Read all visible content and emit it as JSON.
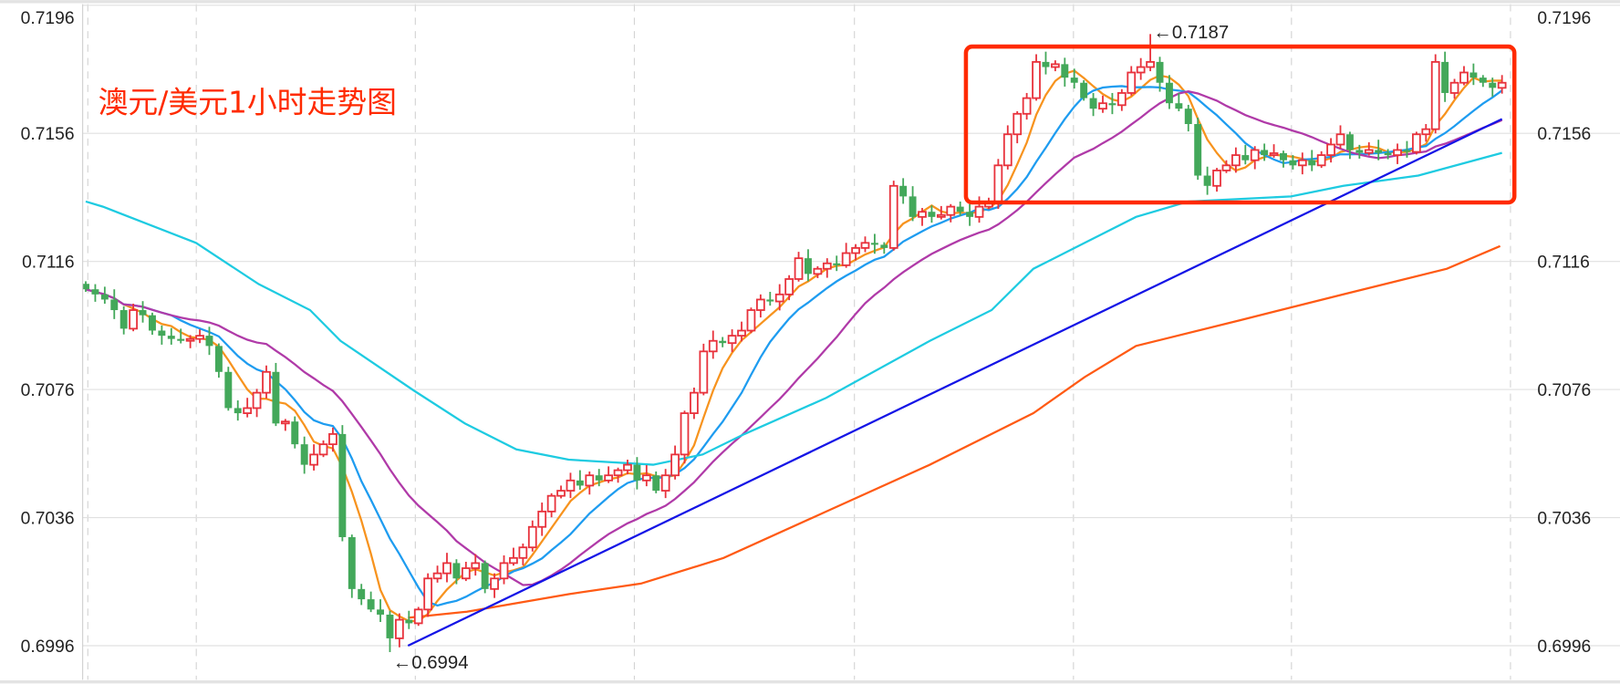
{
  "chart_data": {
    "type": "candlestick",
    "title": "澳元/美元1小时走势图",
    "xlabel": "",
    "ylabel": "",
    "ylim": [
      0.6984,
      0.72
    ],
    "y_ticks": [
      "0.7196",
      "0.7156",
      "0.7116",
      "0.7076",
      "0.7036",
      "0.6996"
    ],
    "grid": true,
    "up_color": "#e8323c",
    "down_color": "#43a85a",
    "first_open": 0.7109,
    "closes": [
      0.71073,
      0.71057,
      0.71041,
      0.71008,
      0.7095,
      0.71008,
      0.70992,
      0.70944,
      0.70928,
      0.70918,
      0.70912,
      0.70918,
      0.70928,
      0.70896,
      0.70815,
      0.70702,
      0.70686,
      0.70702,
      0.7075,
      0.70815,
      0.70654,
      0.7066,
      0.70589,
      0.70525,
      0.70557,
      0.70589,
      0.70621,
      0.70299,
      0.70137,
      0.70105,
      0.70073,
      0.70057,
      0.69983,
      0.70041,
      0.7003,
      0.70073,
      0.7017,
      0.70186,
      0.70218,
      0.7017,
      0.70202,
      0.70218,
      0.70137,
      0.7017,
      0.70218,
      0.70234,
      0.70267,
      0.70331,
      0.70379,
      0.70428,
      0.70444,
      0.70476,
      0.7046,
      0.70492,
      0.70476,
      0.70492,
      0.70508,
      0.70525,
      0.70476,
      0.70492,
      0.70444,
      0.70492,
      0.70557,
      0.70686,
      0.7075,
      0.70879,
      0.70912,
      0.70905,
      0.70928,
      0.70944,
      0.71008,
      0.71041,
      0.71035,
      0.71057,
      0.71105,
      0.7117,
      0.71121,
      0.71137,
      0.71154,
      0.71148,
      0.71186,
      0.71202,
      0.71218,
      0.71212,
      0.71202,
      0.71396,
      0.71363,
      0.71299,
      0.71315,
      0.71299,
      0.71305,
      0.71331,
      0.71315,
      0.71299,
      0.71331,
      0.71347,
      0.7146,
      0.71557,
      0.71621,
      0.7167,
      0.71783,
      0.71767,
      0.71776,
      0.71734,
      0.71718,
      0.7167,
      0.71637,
      0.71654,
      0.71648,
      0.71686,
      0.7175,
      0.71767,
      0.71783,
      0.71718,
      0.71654,
      0.71637,
      0.71589,
      0.71428,
      0.71396,
      0.71444,
      0.7146,
      0.71492,
      0.71476,
      0.71508,
      0.71492,
      0.71498,
      0.71476,
      0.7146,
      0.71476,
      0.7146,
      0.71492,
      0.71525,
      0.71557,
      0.71508,
      0.71499,
      0.71508,
      0.71499,
      0.71492,
      0.71508,
      0.71502,
      0.71557,
      0.71573,
      0.71783,
      0.71686,
      0.71718,
      0.7175,
      0.71734,
      0.71718,
      0.71702,
      0.71718
    ],
    "moving_averages": [
      {
        "name": "MA5",
        "period": 5,
        "color": "#f7931e"
      },
      {
        "name": "MA10",
        "period": 10,
        "color": "#1e9cf0"
      },
      {
        "name": "MA20",
        "period": 20,
        "color": "#b03aa8"
      }
    ],
    "long_lines": [
      {
        "name": "MA-cyan",
        "color": "#1ecbe1",
        "points": [
          [
            0,
            0.71347
          ],
          [
            1.8,
            0.71331
          ],
          [
            11.6,
            0.71218
          ],
          [
            18.2,
            0.71089
          ],
          [
            23.6,
            0.71008
          ],
          [
            26.8,
            0.70912
          ],
          [
            34.5,
            0.70757
          ],
          [
            39.9,
            0.70654
          ],
          [
            45.3,
            0.70573
          ],
          [
            50.8,
            0.70541
          ],
          [
            59.7,
            0.70525
          ],
          [
            64.9,
            0.70557
          ],
          [
            69.3,
            0.70621
          ],
          [
            77.9,
            0.70734
          ],
          [
            88.8,
            0.70912
          ],
          [
            95.3,
            0.71008
          ],
          [
            99.7,
            0.71137
          ],
          [
            105.1,
            0.71218
          ],
          [
            110.5,
            0.71299
          ],
          [
            116,
            0.71347
          ],
          [
            126.8,
            0.71363
          ],
          [
            132.3,
            0.71396
          ],
          [
            140.2,
            0.71428
          ],
          [
            149,
            0.71499
          ]
        ]
      },
      {
        "name": "MA-darkorange",
        "color": "#ff5a14",
        "points": [
          [
            33.9,
            0.70047
          ],
          [
            40.1,
            0.70066
          ],
          [
            50.8,
            0.70121
          ],
          [
            58.4,
            0.70154
          ],
          [
            67.1,
            0.70234
          ],
          [
            77.9,
            0.70379
          ],
          [
            88.8,
            0.70525
          ],
          [
            99.7,
            0.70686
          ],
          [
            105.1,
            0.70799
          ],
          [
            110.5,
            0.70896
          ],
          [
            121.4,
            0.70976
          ],
          [
            132.3,
            0.71057
          ],
          [
            143.2,
            0.71137
          ],
          [
            148.8,
            0.71208
          ]
        ]
      },
      {
        "name": "trendline",
        "color": "#1414e6",
        "points": [
          [
            33.9,
            0.6996
          ],
          [
            149,
            0.71605
          ]
        ]
      }
    ],
    "annotations": [
      {
        "label": "←0.7187",
        "index": 112,
        "price": 0.7187,
        "kind": "high"
      },
      {
        "label": "←0.6994",
        "index": 32,
        "price": 0.6994,
        "kind": "low"
      }
    ],
    "highlight_box": {
      "index_from": 92.6,
      "index_to": 150.3,
      "price_from": 0.71344,
      "price_to": 0.71831,
      "color": "#ff2a00"
    }
  }
}
